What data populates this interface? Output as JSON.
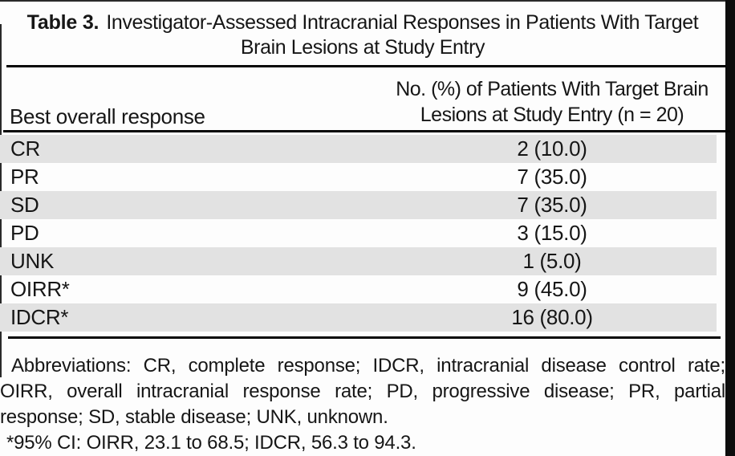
{
  "caption": {
    "label": "Table 3.",
    "title_line1": "Investigator-Assessed Intracranial Responses in Patients With Target",
    "title_line2": "Brain Lesions at Study Entry"
  },
  "header": {
    "col1": "Best overall response",
    "col2_line1": "No. (%) of Patients With Target Brain",
    "col2_line2": "Lesions at Study Entry (n = 20)"
  },
  "rows": [
    {
      "label": "CR",
      "value": "2 (10.0)"
    },
    {
      "label": "PR",
      "value": "7 (35.0)"
    },
    {
      "label": "SD",
      "value": "7 (35.0)"
    },
    {
      "label": "PD",
      "value": "3 (15.0)"
    },
    {
      "label": "UNK",
      "value": "1 (5.0)"
    },
    {
      "label": "OIRR*",
      "value": "9 (45.0)"
    },
    {
      "label": "IDCR*",
      "value": "16 (80.0)"
    }
  ],
  "footnotes": {
    "line1": "Abbreviations: CR, complete response; IDCR, intracranial disease control rate;",
    "line2": "OIRR, overall intracranial response rate; PD, progressive disease; PR, partial",
    "line3": "response; SD, stable disease; UNK, unknown.",
    "line4": "*95% CI: OIRR, 23.1 to 68.5; IDCR, 56.3 to 94.3."
  },
  "colors": {
    "row_shade": "#e2e2e2",
    "text": "#161616",
    "rule": "#050505",
    "right_bar": "#0d0d0d"
  }
}
